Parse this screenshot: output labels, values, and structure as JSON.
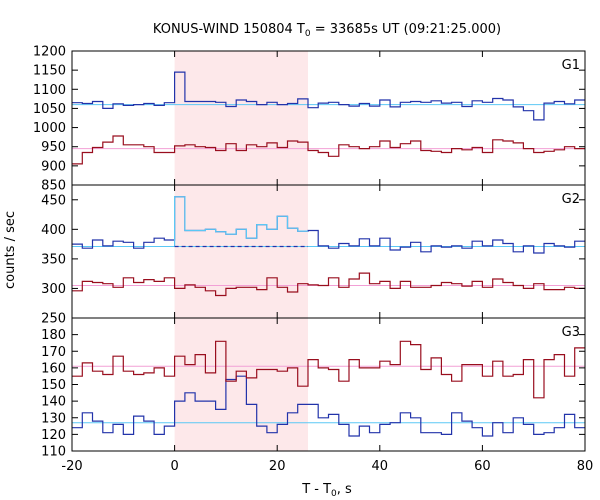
{
  "chart_data": {
    "type": "step-line",
    "title": "KONUS-WIND 150804 T0 = 33685s UT (09:21:25.000)",
    "title_parts": {
      "pre": "KONUS-WIND 150804 T",
      "sub": "0",
      "post": " = 33685s UT (09:21:25.000)"
    },
    "xlabel": "T - T0, s",
    "xlabel_parts": {
      "pre": "T - T",
      "sub": "0",
      "post": ", s"
    },
    "ylabel": "counts / sec",
    "xlim": [
      -20,
      80
    ],
    "xticks": [
      -20,
      0,
      20,
      40,
      60,
      80
    ],
    "highlight_interval": [
      0,
      26
    ],
    "highlight_color": "#fde8ea",
    "colors": {
      "blue_step": "#2233aa",
      "red_step": "#990e1e",
      "blue_bg": "#5bc8f5",
      "red_bg": "#f2a0d6",
      "light_blue_step": "#5bc8f5"
    },
    "panels": [
      {
        "label": "G1",
        "ylim": [
          850,
          1200
        ],
        "yticks": [
          850,
          900,
          950,
          1000,
          1050,
          1100,
          1150,
          1200
        ],
        "background_levels": {
          "blue": 1060,
          "red": 945
        },
        "series": [
          {
            "color": "blue",
            "edges": [
              -20,
              -18,
              -16,
              -14,
              -12,
              -10,
              -8,
              -6,
              -4,
              -2,
              0,
              2,
              4,
              6,
              8,
              10,
              12,
              14,
              16,
              18,
              20,
              22,
              24,
              26,
              28,
              30,
              32,
              34,
              36,
              38,
              40,
              42,
              44,
              46,
              48,
              50,
              52,
              54,
              56,
              58,
              60,
              62,
              64,
              66,
              68,
              70,
              72,
              74,
              76,
              78,
              80
            ],
            "values": [
              1065,
              1063,
              1068,
              1050,
              1062,
              1058,
              1060,
              1063,
              1058,
              1065,
              1145,
              1068,
              1068,
              1068,
              1066,
              1055,
              1072,
              1068,
              1060,
              1066,
              1060,
              1063,
              1075,
              1052,
              1064,
              1066,
              1060,
              1056,
              1063,
              1056,
              1072,
              1054,
              1066,
              1068,
              1066,
              1070,
              1064,
              1066,
              1055,
              1070,
              1066,
              1076,
              1072,
              1054,
              1044,
              1020,
              1064,
              1068,
              1062,
              1072
            ]
          },
          {
            "color": "red",
            "edges": [
              -20,
              -18,
              -16,
              -14,
              -12,
              -10,
              -8,
              -6,
              -4,
              -2,
              0,
              2,
              4,
              6,
              8,
              10,
              12,
              14,
              16,
              18,
              20,
              22,
              24,
              26,
              28,
              30,
              32,
              34,
              36,
              38,
              40,
              42,
              44,
              46,
              48,
              50,
              52,
              54,
              56,
              58,
              60,
              62,
              64,
              66,
              68,
              70,
              72,
              74,
              76,
              78,
              80
            ],
            "values": [
              905,
              935,
              948,
              962,
              978,
              955,
              955,
              950,
              935,
              935,
              952,
              955,
              950,
              948,
              940,
              958,
              940,
              955,
              950,
              960,
              948,
              965,
              962,
              940,
              935,
              925,
              955,
              950,
              945,
              950,
              965,
              948,
              958,
              965,
              940,
              938,
              935,
              945,
              942,
              948,
              935,
              968,
              965,
              960,
              945,
              935,
              938,
              942,
              950,
              945
            ]
          }
        ]
      },
      {
        "label": "G2",
        "ylim": [
          250,
          475
        ],
        "yticks": [
          250,
          300,
          350,
          400,
          450
        ],
        "background_levels": {
          "blue": 371,
          "red": 305
        },
        "series": [
          {
            "color": "blue",
            "edges": [
              -20,
              -18,
              -16,
              -14,
              -12,
              -10,
              -8,
              -6,
              -4,
              -2,
              0,
              2,
              4,
              6,
              8,
              10,
              12,
              14,
              16,
              18,
              20,
              22,
              24,
              26,
              28,
              30,
              32,
              34,
              36,
              38,
              40,
              42,
              44,
              46,
              48,
              50,
              52,
              54,
              56,
              58,
              60,
              62,
              64,
              66,
              68,
              70,
              72,
              74,
              76,
              78,
              80
            ],
            "values": [
              375,
              368,
              382,
              372,
              380,
              378,
              368,
              378,
              385,
              382,
              455,
              398,
              398,
              400,
              396,
              392,
              400,
              385,
              408,
              400,
              422,
              402,
              397,
              398,
              372,
              368,
              376,
              372,
              384,
              372,
              385,
              365,
              370,
              378,
              362,
              372,
              370,
              372,
              368,
              380,
              372,
              382,
              376,
              362,
              372,
              360,
              376,
              372,
              370,
              380
            ]
          },
          {
            "color": "red",
            "edges": [
              -20,
              -18,
              -16,
              -14,
              -12,
              -10,
              -8,
              -6,
              -4,
              -2,
              0,
              2,
              4,
              6,
              8,
              10,
              12,
              14,
              16,
              18,
              20,
              22,
              24,
              26,
              28,
              30,
              32,
              34,
              36,
              38,
              40,
              42,
              44,
              46,
              48,
              50,
              52,
              54,
              56,
              58,
              60,
              62,
              64,
              66,
              68,
              70,
              72,
              74,
              76,
              78,
              80
            ],
            "values": [
              296,
              312,
              310,
              308,
              302,
              318,
              310,
              315,
              312,
              318,
              300,
              306,
              302,
              296,
              288,
              300,
              302,
              302,
              298,
              318,
              302,
              294,
              308,
              306,
              305,
              318,
              302,
              316,
              326,
              308,
              312,
              300,
              312,
              302,
              302,
              305,
              310,
              308,
              304,
              312,
              302,
              316,
              310,
              305,
              300,
              308,
              298,
              298,
              302,
              300
            ]
          }
        ]
      },
      {
        "label": "G3",
        "ylim": [
          110,
          190
        ],
        "yticks": [
          110,
          120,
          130,
          140,
          150,
          160,
          170,
          180
        ],
        "background_levels": {
          "blue": 127,
          "red": 161
        },
        "series": [
          {
            "color": "blue",
            "edges": [
              -20,
              -18,
              -16,
              -14,
              -12,
              -10,
              -8,
              -6,
              -4,
              -2,
              0,
              2,
              4,
              6,
              8,
              10,
              12,
              14,
              16,
              18,
              20,
              22,
              24,
              26,
              28,
              30,
              32,
              34,
              36,
              38,
              40,
              42,
              44,
              46,
              48,
              50,
              52,
              54,
              56,
              58,
              60,
              62,
              64,
              66,
              68,
              70,
              72,
              74,
              76,
              78,
              80
            ],
            "values": [
              124,
              133,
              128,
              121,
              126,
              120,
              131,
              128,
              120,
              125,
              140,
              145,
              140,
              140,
              135,
              153,
              155,
              138,
              125,
              121,
              126,
              133,
              138,
              138,
              130,
              132,
              126,
              119,
              125,
              121,
              126,
              127,
              133,
              130,
              121,
              121,
              120,
              133,
              128,
              124,
              119,
              127,
              121,
              130,
              126,
              120,
              121,
              124,
              132,
              124
            ]
          },
          {
            "color": "red",
            "edges": [
              -20,
              -18,
              -16,
              -14,
              -12,
              -10,
              -8,
              -6,
              -4,
              -2,
              0,
              2,
              4,
              6,
              8,
              10,
              12,
              14,
              16,
              18,
              20,
              22,
              24,
              26,
              28,
              30,
              32,
              34,
              36,
              38,
              40,
              42,
              44,
              46,
              48,
              50,
              52,
              54,
              56,
              58,
              60,
              62,
              64,
              66,
              68,
              70,
              72,
              74,
              76,
              78,
              80
            ],
            "values": [
              155,
              163,
              158,
              156,
              167,
              158,
              156,
              157,
              160,
              155,
              167,
              162,
              168,
              157,
              176,
              152,
              158,
              154,
              159,
              159,
              158,
              160,
              149,
              165,
              160,
              159,
              152,
              165,
              160,
              160,
              164,
              162,
              176,
              174,
              159,
              166,
              156,
              152,
              162,
              162,
              155,
              164,
              155,
              156,
              165,
              142,
              165,
              168,
              155,
              172
            ]
          }
        ]
      }
    ]
  }
}
